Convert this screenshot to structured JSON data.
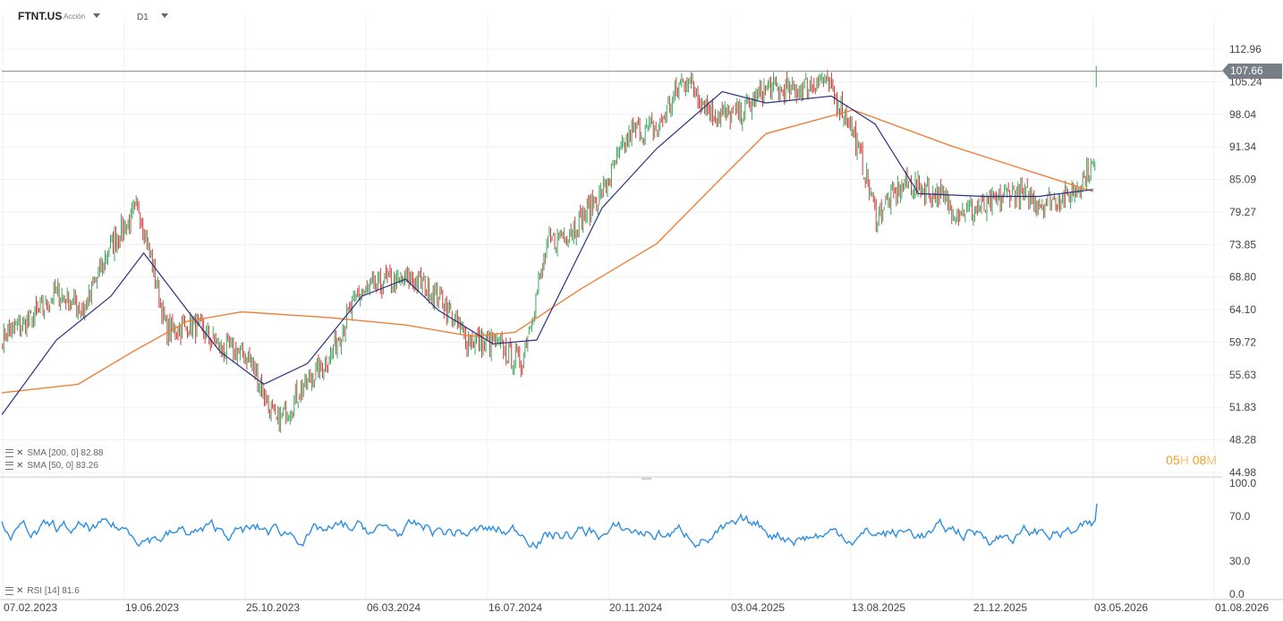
{
  "header": {
    "symbol": "FTNT.US",
    "asset_type": "Acción",
    "timeframe": "D1"
  },
  "colors": {
    "up": "#3aa55a",
    "down": "#d23b3b",
    "sma200": "#f0803a",
    "sma50": "#2c3280",
    "rsi": "#2d8fe0",
    "current_line": "#8a8a8a",
    "badge": "#777e86",
    "countdown": "#f0a020"
  },
  "price_badge": "107.66",
  "countdown": {
    "hours": "05",
    "hours_unit": "H",
    "minutes": "08",
    "minutes_unit": "M"
  },
  "legends": {
    "sma200": "SMA [200, 0] 82.88",
    "sma50": "SMA [50, 0] 83.26",
    "rsi": "RSI [14] 81.6"
  },
  "chart_data": [
    {
      "type": "candlestick",
      "ylim": [
        44.98,
        112.96
      ],
      "y_ticks": [
        "112.96",
        "105.24",
        "98.04",
        "91.34",
        "85.09",
        "79.27",
        "73.85",
        "68.80",
        "64.10",
        "59.72",
        "55.63",
        "51.83",
        "48.28",
        "44.98"
      ],
      "x_ticks": [
        "07.02.2023",
        "19.06.2023",
        "25.10.2023",
        "06.03.2024",
        "16.07.2024",
        "20.11.2024",
        "03.04.2025",
        "13.08.2025",
        "21.12.2025",
        "03.05.2026",
        "01.08.2026"
      ],
      "current_price": 107.66,
      "close_path": [
        [
          "07.02.2023",
          60.5
        ],
        [
          "2023-03",
          62.5
        ],
        [
          "2023-04",
          66.5
        ],
        [
          "2023-05",
          64.0
        ],
        [
          "2023-06",
          74.0
        ],
        [
          "19.06.2023",
          80.0
        ],
        [
          "2023-07",
          61.0
        ],
        [
          "2023-08",
          62.0
        ],
        [
          "2023-09",
          59.0
        ],
        [
          "2023-10",
          58.0
        ],
        [
          "25.10.2023",
          50.0
        ],
        [
          "2023-11",
          54.0
        ],
        [
          "2023-12",
          58.0
        ],
        [
          "2024-01",
          66.0
        ],
        [
          "2024-02",
          68.0
        ],
        [
          "06.03.2024",
          68.5
        ],
        [
          "2024-04",
          66.0
        ],
        [
          "2024-05",
          60.0
        ],
        [
          "2024-06",
          59.5
        ],
        [
          "16.07.2024",
          57.0
        ],
        [
          "2024-08",
          74.0
        ],
        [
          "2024-09",
          77.0
        ],
        [
          "2024-10",
          83.0
        ],
        [
          "20.11.2024",
          94.5
        ],
        [
          "2024-12",
          95.0
        ],
        [
          "2025-01",
          106.5
        ],
        [
          "2025-02",
          98.0
        ],
        [
          "03.04.2025",
          98.0
        ],
        [
          "2025-05",
          104.0
        ],
        [
          "2025-06",
          103.0
        ],
        [
          "2025-07",
          106.0
        ],
        [
          "2025-07b",
          97.0
        ],
        [
          "13.08.2025",
          78.5
        ],
        [
          "2025-09",
          84.5
        ],
        [
          "2025-10",
          83.0
        ],
        [
          "2025-11",
          79.5
        ],
        [
          "21.12.2025",
          80.0
        ],
        [
          "2026-01",
          83.0
        ],
        [
          "2026-02",
          81.0
        ],
        [
          "2026-03",
          82.0
        ],
        [
          "2026-04",
          88.0
        ],
        [
          "2026-04b",
          107.66
        ]
      ],
      "series": [
        {
          "name": "SMA [200, 0]",
          "last": 82.88,
          "values": [
            [
              0,
              53.5
            ],
            [
              0.07,
              54.5
            ],
            [
              0.12,
              58.5
            ],
            [
              0.17,
              62.5
            ],
            [
              0.22,
              63.8
            ],
            [
              0.3,
              63.0
            ],
            [
              0.37,
              62.0
            ],
            [
              0.43,
              60.5
            ],
            [
              0.47,
              61.0
            ],
            [
              0.53,
              67.0
            ],
            [
              0.6,
              74.0
            ],
            [
              0.66,
              85.5
            ],
            [
              0.7,
              94.0
            ],
            [
              0.78,
              99.0
            ],
            [
              0.87,
              91.5
            ],
            [
              1.0,
              82.88
            ]
          ]
        },
        {
          "name": "SMA [50, 0]",
          "last": 83.26,
          "values": [
            [
              0,
              51.0
            ],
            [
              0.05,
              60.0
            ],
            [
              0.1,
              66.0
            ],
            [
              0.13,
              72.5
            ],
            [
              0.17,
              64.0
            ],
            [
              0.2,
              58.5
            ],
            [
              0.24,
              54.5
            ],
            [
              0.28,
              57.0
            ],
            [
              0.33,
              66.0
            ],
            [
              0.37,
              68.5
            ],
            [
              0.4,
              64.0
            ],
            [
              0.45,
              59.5
            ],
            [
              0.49,
              60.0
            ],
            [
              0.55,
              80.0
            ],
            [
              0.6,
              91.0
            ],
            [
              0.66,
              103.0
            ],
            [
              0.7,
              100.5
            ],
            [
              0.76,
              102.0
            ],
            [
              0.8,
              96.0
            ],
            [
              0.84,
              82.5
            ],
            [
              0.9,
              82.0
            ],
            [
              0.95,
              82.0
            ],
            [
              1.0,
              83.26
            ]
          ]
        }
      ]
    },
    {
      "type": "line",
      "name": "RSI [14]",
      "ylim": [
        0,
        100
      ],
      "y_ticks": [
        "100.0",
        "70.0",
        "30.0",
        "0.0"
      ],
      "last": 81.6
    }
  ]
}
